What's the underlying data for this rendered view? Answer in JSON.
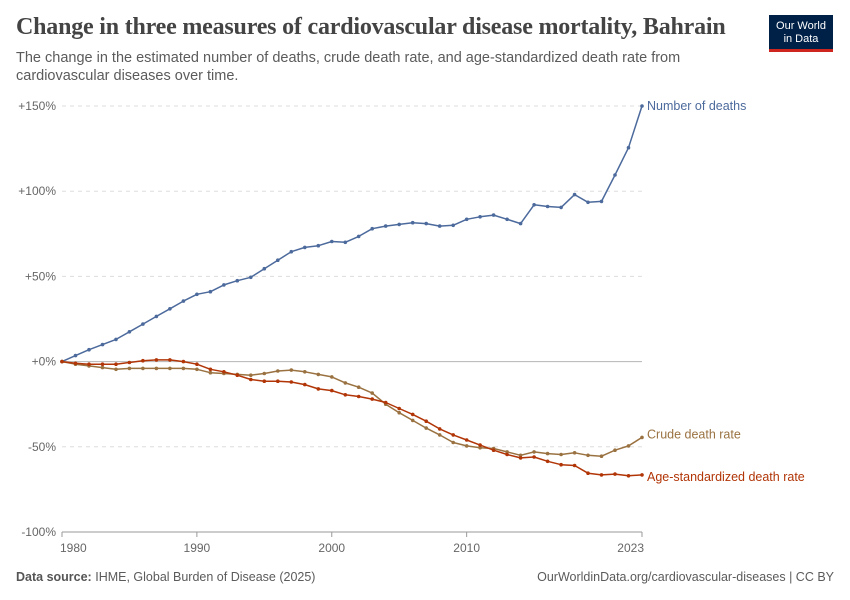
{
  "header": {
    "title": "Change in three measures of cardiovascular disease mortality, Bahrain",
    "subtitle": "The change in the estimated number of deaths, crude death rate, and age-standardized death rate from cardiovascular diseases over time.",
    "logo_line1": "Our World",
    "logo_line2": "in Data"
  },
  "footer": {
    "source_label": "Data source:",
    "source_text": "IHME, Global Burden of Disease (2025)",
    "url": "OurWorldinData.org/cardiovascular-diseases | CC BY"
  },
  "chart_data": {
    "type": "line",
    "xlim": [
      1980,
      2023
    ],
    "ylim": [
      -100,
      150
    ],
    "y_ticks": [
      -100,
      -50,
      0,
      50,
      100,
      150
    ],
    "y_tick_labels": [
      "-100%",
      "-50%",
      "+0%",
      "+50%",
      "+100%",
      "+150%"
    ],
    "x_ticks": [
      1980,
      1990,
      2000,
      2010,
      2023
    ],
    "x_tick_labels": [
      "1980",
      "1990",
      "2000",
      "2010",
      "2023"
    ],
    "grid": "horizontal dashed",
    "legend": "inline labels at line ends",
    "x": [
      1980,
      1981,
      1982,
      1983,
      1984,
      1985,
      1986,
      1987,
      1988,
      1989,
      1990,
      1991,
      1992,
      1993,
      1994,
      1995,
      1996,
      1997,
      1998,
      1999,
      2000,
      2001,
      2002,
      2003,
      2004,
      2005,
      2006,
      2007,
      2008,
      2009,
      2010,
      2011,
      2012,
      2013,
      2014,
      2015,
      2016,
      2017,
      2018,
      2019,
      2020,
      2021,
      2022,
      2023
    ],
    "series": [
      {
        "name": "Number of deaths",
        "color": "#4c6a9c",
        "values": [
          0,
          3.5,
          7,
          10,
          13,
          17.5,
          22,
          26.5,
          31,
          35.5,
          39.5,
          41,
          45,
          47.5,
          49.5,
          54.5,
          59.5,
          64.5,
          67,
          68,
          70.5,
          70,
          73.5,
          78,
          79.5,
          80.5,
          81.5,
          81,
          79.5,
          80,
          83.5,
          85,
          86,
          83.5,
          81,
          92,
          91,
          90.5,
          98,
          93.5,
          94,
          109.5,
          125.5,
          150
        ]
      },
      {
        "name": "Crude death rate",
        "color": "#9a7241",
        "values": [
          0,
          -1.5,
          -2.5,
          -3.5,
          -4.5,
          -4,
          -4,
          -4,
          -4,
          -4,
          -4.5,
          -6.5,
          -7,
          -7.5,
          -8,
          -7,
          -5.5,
          -5,
          -6,
          -7.5,
          -9,
          -12.5,
          -15,
          -18.5,
          -25,
          -30,
          -34.5,
          -39,
          -43,
          -47.5,
          -49.5,
          -50.5,
          -51,
          -53,
          -55,
          -53,
          -54,
          -54.5,
          -53.5,
          -55,
          -55.5,
          -52,
          -49.5,
          -44.5
        ]
      },
      {
        "name": "Age-standardized death rate",
        "color": "#b13507",
        "values": [
          0,
          -1,
          -1.5,
          -1.5,
          -1.5,
          -0.5,
          0.5,
          1,
          1,
          0,
          -1.5,
          -4.5,
          -6,
          -8,
          -10.5,
          -11.5,
          -11.5,
          -12,
          -13.5,
          -16,
          -17,
          -19.5,
          -20.5,
          -22,
          -24,
          -27.5,
          -31,
          -35,
          -39.5,
          -43,
          -46,
          -49,
          -52,
          -54.5,
          -56.5,
          -56,
          -58.5,
          -60.5,
          -61,
          -65.5,
          -66.5,
          -66,
          -67,
          -66.5
        ]
      }
    ]
  }
}
